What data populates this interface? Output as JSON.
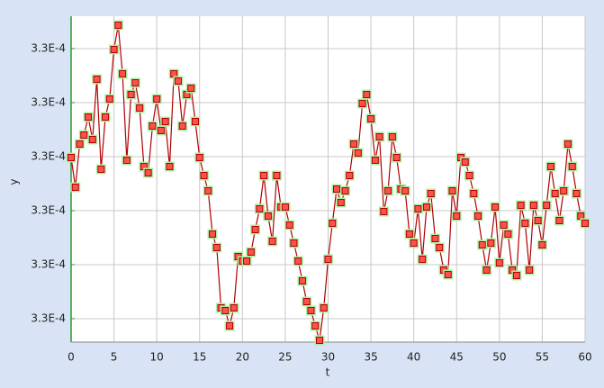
{
  "chart_data": {
    "type": "line",
    "x_label": "t",
    "y_label": "y",
    "x": [
      0,
      0.5,
      1,
      1.5,
      2,
      2.5,
      3,
      3.5,
      4,
      4.5,
      5,
      5.5,
      6,
      6.5,
      7,
      7.5,
      8,
      8.5,
      9,
      9.5,
      10,
      10.5,
      11,
      11.5,
      12,
      12.5,
      13,
      13.5,
      14,
      14.5,
      15,
      15.5,
      16,
      16.5,
      17,
      17.5,
      18,
      18.5,
      19,
      19.5,
      20,
      20.5,
      21,
      21.5,
      22,
      22.5,
      23,
      23.5,
      24,
      24.5,
      25,
      25.5,
      26,
      26.5,
      27,
      27.5,
      28,
      28.5,
      29,
      29.5,
      30,
      30.5,
      31,
      31.5,
      32,
      32.5,
      33,
      33.5,
      34,
      34.5,
      35,
      35.5,
      36,
      36.5,
      37,
      37.5,
      38,
      38.5,
      39,
      39.5,
      40,
      40.5,
      41,
      41.5,
      42,
      42.5,
      43,
      43.5,
      44,
      44.5,
      45,
      45.5,
      46,
      46.5,
      47,
      47.5,
      48,
      48.5,
      49,
      49.5,
      50,
      50.5,
      51,
      51.5,
      52,
      52.5,
      53,
      53.5,
      54,
      54.5,
      55,
      55.5,
      56,
      56.5,
      57,
      57.5,
      58,
      58.5,
      59,
      59.5,
      60
    ],
    "series": [
      {
        "color": "#b00000",
        "marker_color": "#ff5050",
        "halo_color": "#a8f0a0",
        "values": [
          0.0003295279,
          0.0003295246,
          0.0003295294,
          0.0003295304,
          0.0003295324,
          0.0003295299,
          0.0003295366,
          0.0003295266,
          0.0003295324,
          0.0003295344,
          0.0003295399,
          0.0003295426,
          0.0003295372,
          0.0003295276,
          0.0003295349,
          0.0003295362,
          0.0003295334,
          0.0003295269,
          0.0003295262,
          0.0003295314,
          0.0003295344,
          0.0003295309,
          0.0003295319,
          0.0003295269,
          0.0003295372,
          0.0003295364,
          0.0003295314,
          0.0003295349,
          0.0003295356,
          0.0003295319,
          0.0003295279,
          0.0003295259,
          0.0003295242,
          0.0003295194,
          0.0003295179,
          0.0003295112,
          0.0003295109,
          0.0003295092,
          0.0003295112,
          0.0003295169,
          0.0003295164,
          0.0003295164,
          0.0003295174,
          0.0003295199,
          0.0003295222,
          0.0003295259,
          0.0003295214,
          0.0003295186,
          0.0003295259,
          0.0003295224,
          0.0003295224,
          0.0003295204,
          0.0003295184,
          0.0003295164,
          0.0003295142,
          0.0003295119,
          0.0003295109,
          0.0003295092,
          0.0003295076,
          0.0003295112,
          0.0003295166,
          0.0003295206,
          0.0003295244,
          0.0003295229,
          0.0003295242,
          0.0003295259,
          0.0003295294,
          0.0003295284,
          0.0003295339,
          0.0003295349,
          0.0003295322,
          0.0003295276,
          0.0003295302,
          0.0003295219,
          0.0003295242,
          0.0003295302,
          0.0003295279,
          0.0003295244,
          0.0003295242,
          0.0003295194,
          0.0003295184,
          0.0003295222,
          0.0003295166,
          0.0003295224,
          0.0003295239,
          0.0003295189,
          0.0003295179,
          0.0003295154,
          0.0003295149,
          0.0003295242,
          0.0003295214,
          0.0003295279,
          0.0003295274,
          0.0003295259,
          0.0003295239,
          0.0003295214,
          0.0003295182,
          0.0003295154,
          0.0003295184,
          0.0003295224,
          0.0003295162,
          0.0003295204,
          0.0003295194,
          0.0003295154,
          0.0003295148,
          0.0003295226,
          0.0003295206,
          0.0003295154,
          0.0003295226,
          0.0003295209,
          0.0003295182,
          0.0003295226,
          0.0003295269,
          0.0003295239,
          0.0003295209,
          0.0003295242,
          0.0003295294,
          0.0003295269,
          0.0003295239,
          0.0003295214,
          0.0003295206
        ]
      }
    ],
    "xlim": [
      0,
      60
    ],
    "xticks": [
      0,
      5,
      10,
      15,
      20,
      25,
      30,
      35,
      40,
      45,
      50,
      55,
      60
    ],
    "ylim": [
      0.0003295074,
      0.0003295436
    ],
    "yticks": [
      {
        "value": 0.00032951,
        "label": "3.3E-4"
      },
      {
        "value": 0.000329516,
        "label": "3.3E-4"
      },
      {
        "value": 0.000329522,
        "label": "3.3E-4"
      },
      {
        "value": 0.000329528,
        "label": "3.3E-4"
      },
      {
        "value": 0.000329534,
        "label": "3.3E-4"
      },
      {
        "value": 0.00032954,
        "label": "3.3E-4"
      }
    ],
    "grid": true
  }
}
